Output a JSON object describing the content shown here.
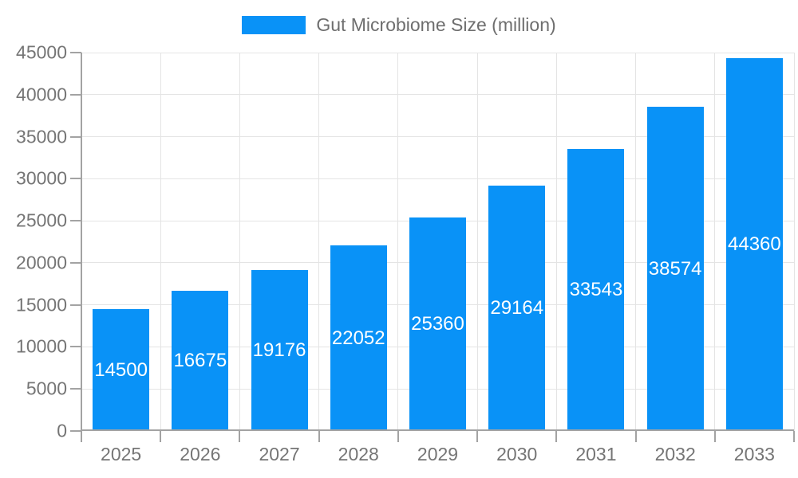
{
  "background": "#ffffff",
  "chart_data": {
    "type": "bar",
    "title": "",
    "legend": "Gut Microbiome Size (million)",
    "legend_position": "top-center",
    "categories": [
      "2025",
      "2026",
      "2027",
      "2028",
      "2029",
      "2030",
      "2031",
      "2032",
      "2033"
    ],
    "series": [
      {
        "name": "Gut Microbiome Size (million)",
        "values": [
          14500,
          16675,
          19176,
          22052,
          25360,
          29164,
          33543,
          38574,
          44360
        ],
        "color": "#0992f7"
      }
    ],
    "value_labels_inside_bars": [
      14500,
      16675,
      19176,
      22052,
      25360,
      29164,
      33543,
      38574,
      44360
    ],
    "value_label_color": "#ffffff",
    "xlabel": "",
    "ylabel": "",
    "ylim": [
      0,
      45000
    ],
    "yticks": [
      0,
      5000,
      10000,
      15000,
      20000,
      25000,
      30000,
      35000,
      40000,
      45000
    ],
    "grid": true,
    "axis_text_color": "#757575",
    "gridline_color": "#e4e4e4",
    "axis_line_color": "#a3a3a3"
  }
}
